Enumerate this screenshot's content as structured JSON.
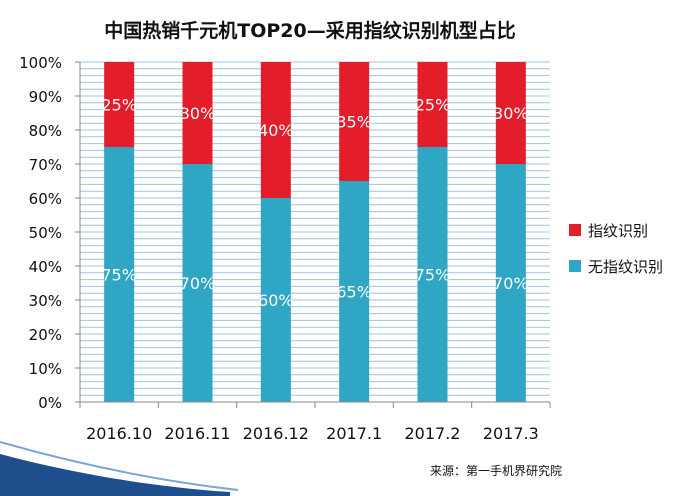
{
  "chart_data": {
    "type": "bar",
    "stacked": true,
    "percent": true,
    "title": "中国热销千元机TOP20—采用指纹识别机型占比",
    "categories": [
      "2016.10",
      "2016.11",
      "2016.12",
      "2017.1",
      "2017.2",
      "2017.3"
    ],
    "series": [
      {
        "name": "无指纹识别",
        "color": "#2ea6c4",
        "values": [
          75,
          70,
          60,
          65,
          75,
          70
        ],
        "labels": [
          "75%",
          "70%",
          "60%",
          "65%",
          "75%",
          "70%"
        ]
      },
      {
        "name": "指纹识别",
        "color": "#e31e2a",
        "values": [
          25,
          30,
          40,
          35,
          25,
          30
        ],
        "labels": [
          "25%",
          "30%",
          "40%",
          "35%",
          "25%",
          "30%"
        ]
      }
    ],
    "ylim": [
      0,
      100
    ],
    "yticks": [
      "0%",
      "10%",
      "20%",
      "30%",
      "40%",
      "50%",
      "60%",
      "70%",
      "80%",
      "90%",
      "100%"
    ],
    "grid": true,
    "legend_position": "right",
    "legend_order": [
      "指纹识别",
      "无指纹识别"
    ]
  },
  "source_note": "来源：第一手机界研究院",
  "colors": {
    "grid": "#9fc4dc",
    "axis": "#888888",
    "deco": "#1f4e8c"
  }
}
